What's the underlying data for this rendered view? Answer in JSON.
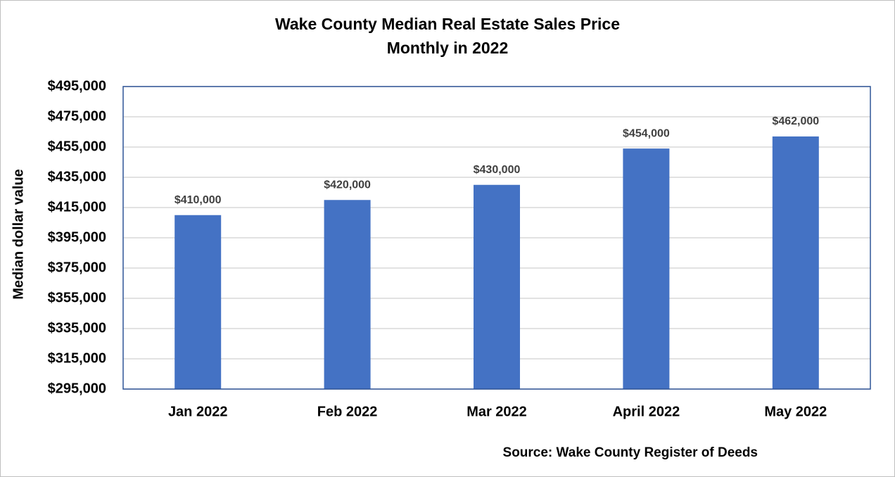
{
  "chart_data": {
    "type": "bar",
    "title": "Wake County Median Real Estate Sales Price",
    "subtitle": "Monthly in 2022",
    "y_label": "Median dollar value",
    "source": "Source: Wake County Register of Deeds",
    "categories": [
      "Jan 2022",
      "Feb 2022",
      "Mar 2022",
      "April 2022",
      "May 2022"
    ],
    "values": [
      410000,
      420000,
      430000,
      454000,
      462000
    ],
    "value_labels": [
      "$410,000",
      "$420,000",
      "$430,000",
      "$454,000",
      "$462,000"
    ],
    "color": "#4472c4",
    "ylim": [
      295000,
      495000
    ],
    "yticks": [
      {
        "value": 295000,
        "label": "$295,000"
      },
      {
        "value": 315000,
        "label": "$315,000"
      },
      {
        "value": 335000,
        "label": "$335,000"
      },
      {
        "value": 355000,
        "label": "$355,000"
      },
      {
        "value": 375000,
        "label": "$375,000"
      },
      {
        "value": 395000,
        "label": "$395,000"
      },
      {
        "value": 415000,
        "label": "$415,000"
      },
      {
        "value": 435000,
        "label": "$435,000"
      },
      {
        "value": 455000,
        "label": "$455,000"
      },
      {
        "value": 475000,
        "label": "$475,000"
      },
      {
        "value": 495000,
        "label": "$495,000"
      }
    ],
    "grid": true
  }
}
